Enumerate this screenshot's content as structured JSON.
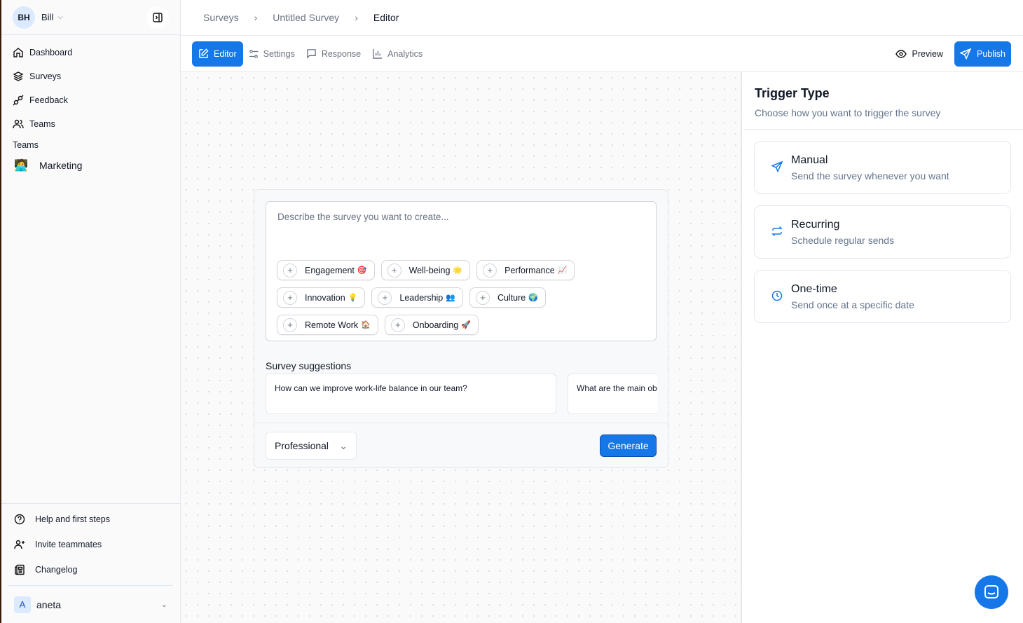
{
  "sidebar": {
    "user_initials": "BH",
    "user_name": "Bill",
    "nav": [
      {
        "label": "Dashboard",
        "icon": "home-icon"
      },
      {
        "label": "Surveys",
        "icon": "layers-icon"
      },
      {
        "label": "Feedback",
        "icon": "plug-icon"
      },
      {
        "label": "Teams",
        "icon": "users-icon"
      }
    ],
    "teams_heading": "Teams",
    "teams": [
      {
        "label": "Marketing",
        "emoji": "🧑‍💻"
      }
    ],
    "bottom": [
      {
        "label": "Help and first steps",
        "icon": "help-circle-icon"
      },
      {
        "label": "Invite teammates",
        "icon": "user-plus-icon"
      },
      {
        "label": "Changelog",
        "icon": "newspaper-icon"
      }
    ],
    "account": {
      "initial": "A",
      "name": "aneta"
    }
  },
  "breadcrumb": [
    "Surveys",
    "Untitled Survey",
    "Editor"
  ],
  "toolbar": {
    "tabs": [
      "Editor",
      "Settings",
      "Response",
      "Analytics"
    ],
    "active": "Editor",
    "preview": "Preview",
    "publish": "Publish"
  },
  "accent": "#1677e8",
  "editor": {
    "placeholder": "Describe the survey you want to create...",
    "chips": [
      {
        "label": "Engagement",
        "emoji": "🎯"
      },
      {
        "label": "Well-being",
        "emoji": "🌟"
      },
      {
        "label": "Performance",
        "emoji": "📈"
      },
      {
        "label": "Innovation",
        "emoji": "💡"
      },
      {
        "label": "Leadership",
        "emoji": "👥"
      },
      {
        "label": "Culture",
        "emoji": "🌍"
      },
      {
        "label": "Remote Work",
        "emoji": "🏠"
      },
      {
        "label": "Onboarding",
        "emoji": "🚀"
      }
    ],
    "suggestions_label": "Survey suggestions",
    "suggestions": [
      "How can we improve work-life balance in our team?",
      "What are the main ob"
    ],
    "tone": "Professional",
    "generate": "Generate"
  },
  "trigger": {
    "title": "Trigger Type",
    "subtitle": "Choose how you want to trigger the survey",
    "options": [
      {
        "title": "Manual",
        "desc": "Send the survey whenever you want",
        "icon": "send-icon"
      },
      {
        "title": "Recurring",
        "desc": "Schedule regular sends",
        "icon": "repeat-icon"
      },
      {
        "title": "One-time",
        "desc": "Send once at a specific date",
        "icon": "clock-icon"
      }
    ]
  }
}
